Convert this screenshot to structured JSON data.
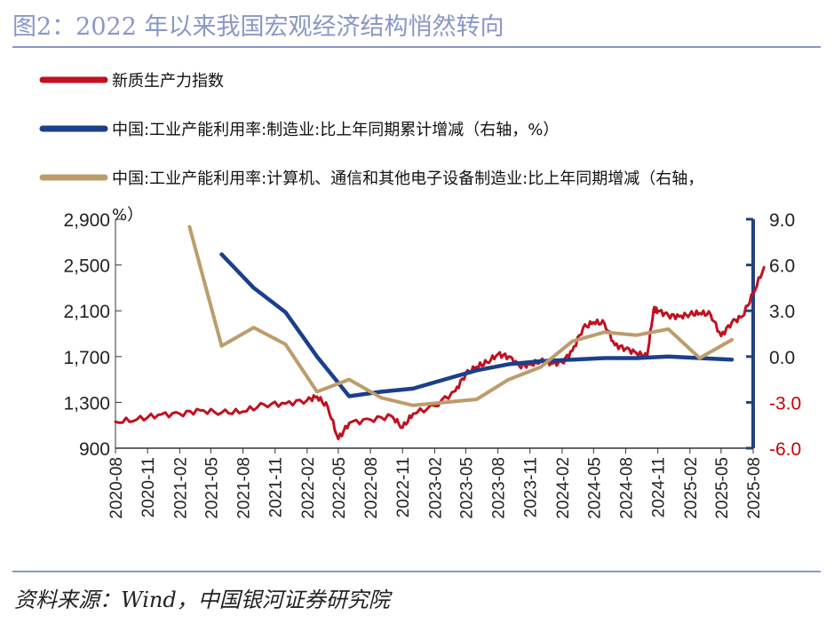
{
  "figure_title": "图2：2022 年以来我国宏观经济结构悄然转向",
  "source_note": "资料来源：Wind，中国银河证券研究院",
  "colors": {
    "accent": "#8a97c6",
    "red": "#c0111f",
    "blue": "#1b3f8b",
    "tan": "#bd9c6c",
    "right_axis_negative": "#cc0000"
  },
  "chart_data": {
    "type": "line",
    "legend_position": "top",
    "grid": false,
    "x_ticks": [
      "2020-08",
      "2020-11",
      "2021-02",
      "2021-05",
      "2021-08",
      "2021-11",
      "2022-02",
      "2022-05",
      "2022-08",
      "2022-11",
      "2023-02",
      "2023-05",
      "2023-08",
      "2023-11",
      "2024-02",
      "2024-05",
      "2024-08",
      "2024-11",
      "2025-02",
      "2025-05",
      "2025-08"
    ],
    "left_axis": {
      "ylim": [
        900,
        2900
      ],
      "ticks": [
        "900",
        "1,300",
        "1,700",
        "2,100",
        "2,500",
        "2,900"
      ]
    },
    "right_axis": {
      "ylim": [
        -6.0,
        9.0
      ],
      "ticks": [
        "-6.0",
        "-3.0",
        "0.0",
        "3.0",
        "6.0",
        "9.0"
      ]
    },
    "series": [
      {
        "name": "新质生产力指数",
        "axis": "left",
        "x": [
          "2020-08",
          "2020-10",
          "2020-12",
          "2021-02",
          "2021-04",
          "2021-06",
          "2021-08",
          "2021-10",
          "2021-12",
          "2022-02",
          "2022-03",
          "2022-04",
          "2022-05",
          "2022-06",
          "2022-08",
          "2022-10",
          "2022-11",
          "2022-12",
          "2023-02",
          "2023-04",
          "2023-05",
          "2023-06",
          "2023-07",
          "2023-08",
          "2023-09",
          "2023-10",
          "2023-11",
          "2023-12",
          "2024-01",
          "2024-02",
          "2024-03",
          "2024-04",
          "2024-05",
          "2024-06",
          "2024-07",
          "2024-08",
          "2024-09",
          "2024-10",
          "2024-10-20",
          "2024-11",
          "2024-12",
          "2025-01",
          "2025-02",
          "2025-03",
          "2025-04",
          "2025-05",
          "2025-06",
          "2025-07",
          "2025-08",
          "2025-09"
        ],
        "values": [
          1130,
          1150,
          1190,
          1200,
          1230,
          1210,
          1220,
          1280,
          1290,
          1320,
          1350,
          1260,
          980,
          1120,
          1150,
          1180,
          1080,
          1200,
          1270,
          1400,
          1550,
          1610,
          1650,
          1720,
          1700,
          1620,
          1630,
          1660,
          1640,
          1650,
          1750,
          1950,
          2000,
          1990,
          1800,
          1770,
          1730,
          1700,
          2110,
          2100,
          2060,
          2050,
          2070,
          2080,
          2070,
          1880,
          2000,
          2050,
          2250,
          2480
        ]
      },
      {
        "name": "中国:工业产能利用率:制造业:比上年同期累计增减（右轴，%）",
        "axis": "right",
        "x": [
          "2021-06",
          "2021-09",
          "2021-12",
          "2022-03",
          "2022-06",
          "2022-09",
          "2022-12",
          "2023-03",
          "2023-06",
          "2023-09",
          "2023-12",
          "2024-03",
          "2024-06",
          "2024-09",
          "2024-12",
          "2025-03",
          "2025-06"
        ],
        "values": [
          6.7,
          4.5,
          2.9,
          0.0,
          -2.6,
          -2.3,
          -2.1,
          -1.5,
          -0.9,
          -0.5,
          -0.3,
          -0.2,
          -0.1,
          -0.1,
          0.0,
          -0.1,
          -0.2
        ]
      },
      {
        "name": "中国:工业产能利用率:计算机、通信和其他电子设备制造业:比上年同期增减（右轴，%）",
        "axis": "right",
        "x": [
          "2021-03",
          "2021-06",
          "2021-09",
          "2021-12",
          "2022-03",
          "2022-06",
          "2022-09",
          "2022-12",
          "2023-03",
          "2023-06",
          "2023-09",
          "2023-12",
          "2024-03",
          "2024-06",
          "2024-09",
          "2024-12",
          "2025-03",
          "2025-06"
        ],
        "values": [
          8.5,
          0.7,
          1.9,
          0.8,
          -2.3,
          -1.5,
          -2.7,
          -3.2,
          -3.0,
          -2.8,
          -1.5,
          -0.7,
          1.0,
          1.6,
          1.4,
          1.8,
          -0.1,
          1.1
        ]
      }
    ]
  }
}
